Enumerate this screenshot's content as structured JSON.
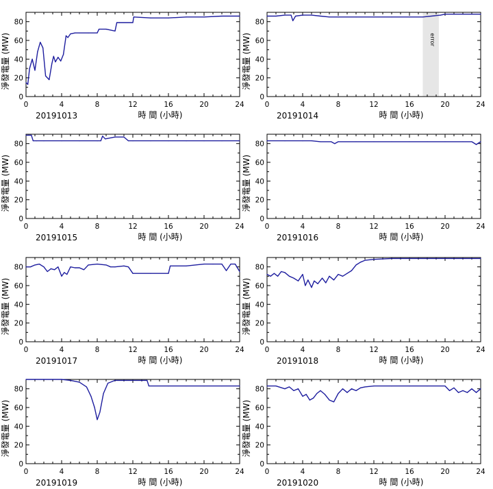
{
  "xlabel": "時 間 (小時)",
  "ylabel": "淨發電量 (MW)",
  "x_ticks": [
    0,
    4,
    8,
    12,
    16,
    20,
    24
  ],
  "y_ticks": [
    0,
    20,
    40,
    60,
    80
  ],
  "colors": {
    "line": "#1c1c9e",
    "error_band": "#e6e6e6",
    "axis": "#000000"
  },
  "chart_data": [
    {
      "type": "line",
      "date": "20191013",
      "xlim": [
        0,
        24
      ],
      "ylim": [
        0,
        90
      ],
      "x": [
        0,
        0.2,
        0.4,
        0.7,
        1.0,
        1.3,
        1.6,
        1.9,
        2.2,
        2.6,
        2.9,
        3.1,
        3.3,
        3.6,
        3.9,
        4.2,
        4.5,
        4.7,
        5.0,
        5.5,
        6,
        7,
        8,
        8.2,
        9,
        10,
        10.2,
        10.5,
        12,
        12.1,
        14,
        16,
        18,
        20,
        22,
        24
      ],
      "values": [
        15,
        13,
        30,
        40,
        28,
        48,
        58,
        52,
        22,
        18,
        35,
        43,
        37,
        42,
        38,
        45,
        65,
        63,
        67,
        68,
        68,
        68,
        68,
        72,
        72,
        70,
        79,
        79,
        79,
        85,
        84,
        84,
        85,
        85,
        86,
        86
      ]
    },
    {
      "type": "line",
      "date": "20191014",
      "xlim": [
        0,
        24
      ],
      "ylim": [
        0,
        90
      ],
      "x": [
        0,
        1,
        2,
        2.7,
        2.9,
        3.2,
        4,
        5,
        6,
        7,
        8,
        10,
        12,
        14,
        16,
        17.3,
        17.5,
        19.5,
        20,
        21,
        22,
        23,
        24
      ],
      "values": [
        86,
        86,
        87,
        87,
        81,
        86,
        87,
        87,
        86,
        85,
        85,
        85,
        85,
        85,
        85,
        85,
        85,
        87,
        88,
        88,
        88,
        88,
        88
      ],
      "error_band": {
        "x_start": 17.5,
        "x_end": 19.3,
        "label": "error"
      }
    },
    {
      "type": "line",
      "date": "20191015",
      "xlim": [
        0,
        24
      ],
      "ylim": [
        0,
        90
      ],
      "x": [
        0,
        0.3,
        0.6,
        0.8,
        1.2,
        2,
        4,
        6,
        8,
        8.4,
        8.6,
        8.9,
        10,
        11,
        11.5,
        12,
        14,
        16,
        18,
        20,
        22,
        24
      ],
      "values": [
        89,
        89,
        89,
        83,
        83,
        83,
        83,
        83,
        83,
        83,
        88,
        85,
        87,
        87,
        83,
        83,
        83,
        83,
        83,
        83,
        83,
        83
      ],
      "ylim_top_pad": true
    },
    {
      "type": "line",
      "date": "20191016",
      "xlim": [
        0,
        24
      ],
      "ylim": [
        0,
        90
      ],
      "x": [
        0,
        2,
        4,
        5,
        6,
        7.2,
        7.6,
        8,
        10,
        12,
        14,
        16,
        18,
        20,
        22,
        23,
        23.5,
        24
      ],
      "values": [
        83,
        83,
        83,
        83,
        82,
        82,
        80,
        82,
        82,
        82,
        82,
        82,
        82,
        82,
        82,
        82,
        79,
        82
      ]
    },
    {
      "type": "line",
      "date": "20191017",
      "xlim": [
        0,
        24
      ],
      "ylim": [
        0,
        90
      ],
      "x": [
        0,
        0.5,
        1,
        1.5,
        2,
        2.4,
        2.8,
        3.2,
        3.6,
        4.0,
        4.3,
        4.6,
        5,
        5.5,
        6,
        6.5,
        7,
        8,
        9,
        9.5,
        10,
        11,
        11.5,
        12,
        14,
        16,
        16.2,
        18,
        20,
        21,
        22,
        22.5,
        23,
        23.5,
        24
      ],
      "values": [
        80,
        80,
        82,
        83,
        80,
        75,
        78,
        77,
        80,
        70,
        74,
        72,
        80,
        79,
        79,
        77,
        82,
        83,
        82,
        80,
        80,
        81,
        80,
        73,
        73,
        73,
        81,
        81,
        83,
        83,
        83,
        76,
        83,
        83,
        75
      ]
    },
    {
      "type": "line",
      "date": "20191018",
      "xlim": [
        0,
        24
      ],
      "ylim": [
        0,
        90
      ],
      "x": [
        0,
        0.4,
        0.8,
        1.2,
        1.6,
        2.0,
        2.5,
        3.0,
        3.5,
        4.0,
        4.3,
        4.6,
        5.0,
        5.3,
        5.7,
        6.2,
        6.6,
        7.0,
        7.5,
        8.0,
        8.5,
        9.0,
        9.5,
        10,
        10.5,
        11,
        12,
        14,
        16,
        18,
        20,
        22,
        24
      ],
      "values": [
        72,
        70,
        73,
        70,
        75,
        74,
        70,
        68,
        65,
        72,
        60,
        66,
        58,
        65,
        62,
        68,
        63,
        70,
        66,
        72,
        70,
        73,
        76,
        82,
        85,
        87,
        88,
        89,
        89,
        89,
        89,
        89,
        89
      ]
    },
    {
      "type": "line",
      "date": "20191019",
      "xlim": [
        0,
        24
      ],
      "ylim": [
        0,
        90
      ],
      "x": [
        0,
        2,
        4,
        5,
        6,
        6.8,
        7.3,
        7.7,
        8.0,
        8.3,
        8.7,
        9.2,
        10,
        11,
        12,
        13.6,
        13.8,
        16,
        18,
        20,
        22,
        24
      ],
      "values": [
        90,
        90,
        90,
        89,
        87,
        82,
        72,
        60,
        47,
        55,
        75,
        86,
        89,
        89,
        89,
        89,
        83,
        83,
        83,
        83,
        83,
        83
      ]
    },
    {
      "type": "line",
      "date": "20191020",
      "xlim": [
        0,
        24
      ],
      "ylim": [
        0,
        90
      ],
      "x": [
        0,
        1,
        2,
        2.5,
        3,
        3.5,
        4,
        4.4,
        4.8,
        5.2,
        5.6,
        6,
        6.5,
        7,
        7.5,
        8,
        8.5,
        9,
        9.5,
        10,
        10.5,
        11,
        12,
        14,
        16,
        18,
        20,
        20.5,
        21,
        21.5,
        22,
        22.5,
        23,
        23.5,
        24
      ],
      "values": [
        83,
        83,
        80,
        82,
        78,
        80,
        72,
        74,
        68,
        70,
        75,
        78,
        74,
        68,
        66,
        75,
        80,
        76,
        80,
        78,
        81,
        82,
        83,
        83,
        83,
        83,
        83,
        78,
        81,
        76,
        78,
        76,
        80,
        76,
        80
      ]
    }
  ]
}
